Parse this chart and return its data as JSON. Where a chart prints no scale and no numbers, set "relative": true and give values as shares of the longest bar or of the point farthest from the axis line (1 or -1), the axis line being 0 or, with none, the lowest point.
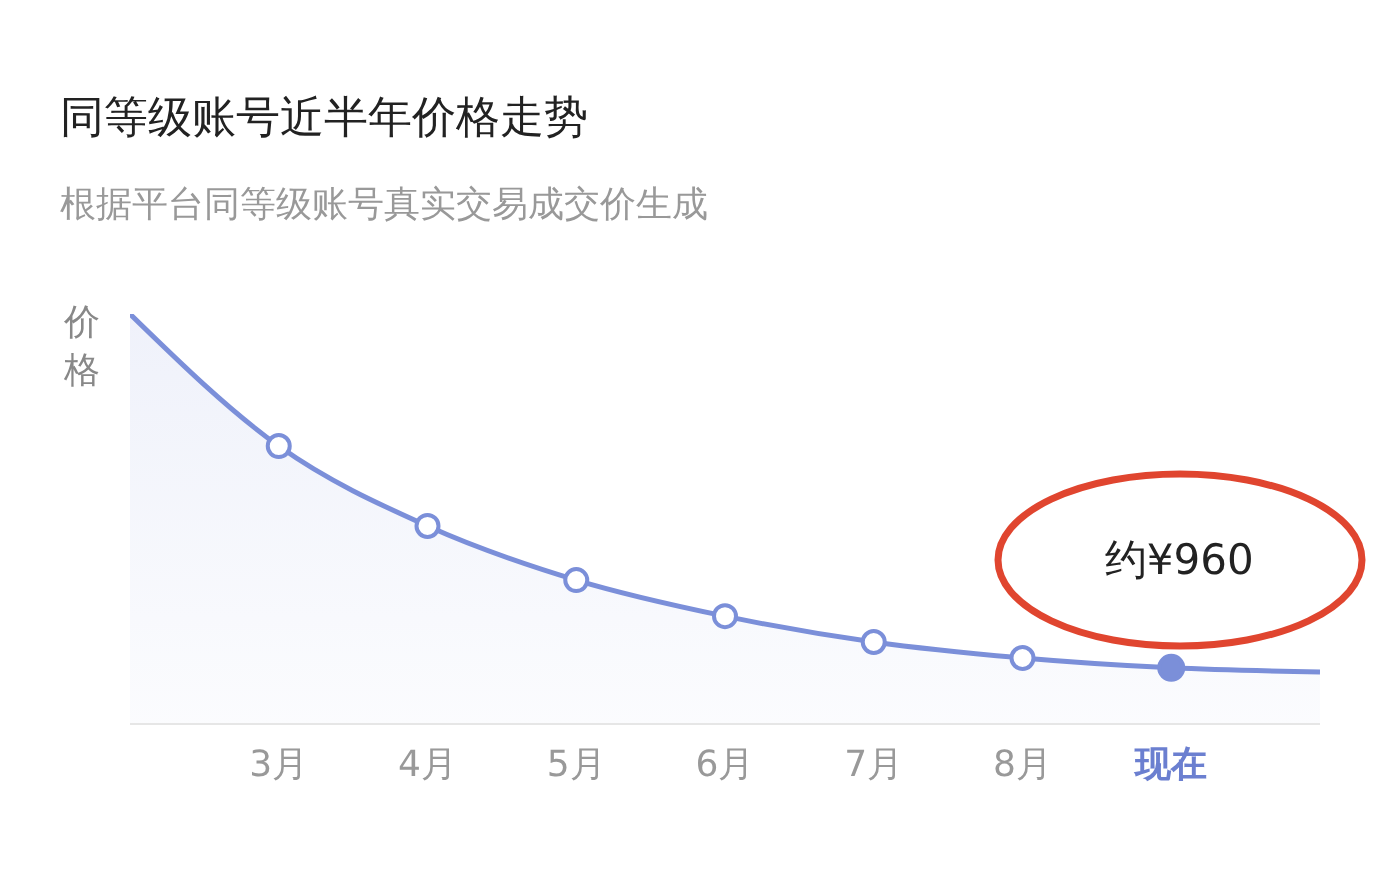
{
  "chart_data": {
    "type": "area",
    "title": "同等级账号近半年价格走势",
    "subtitle": "根据平台同等级账号真实交易成交价生成",
    "ylabel": "价格",
    "categories": [
      null,
      "3月",
      "4月",
      "5月",
      "6月",
      "7月",
      "8月",
      "现在",
      null
    ],
    "series": [
      {
        "color": "#7b8fd9",
        "values": [
          1,
          0.678,
          0.483,
          0.351,
          0.263,
          0.2,
          0.161,
          0.137,
          0.127
        ]
      }
    ],
    "relative": true,
    "marker": "circle",
    "annotations": [
      "约¥960"
    ]
  }
}
